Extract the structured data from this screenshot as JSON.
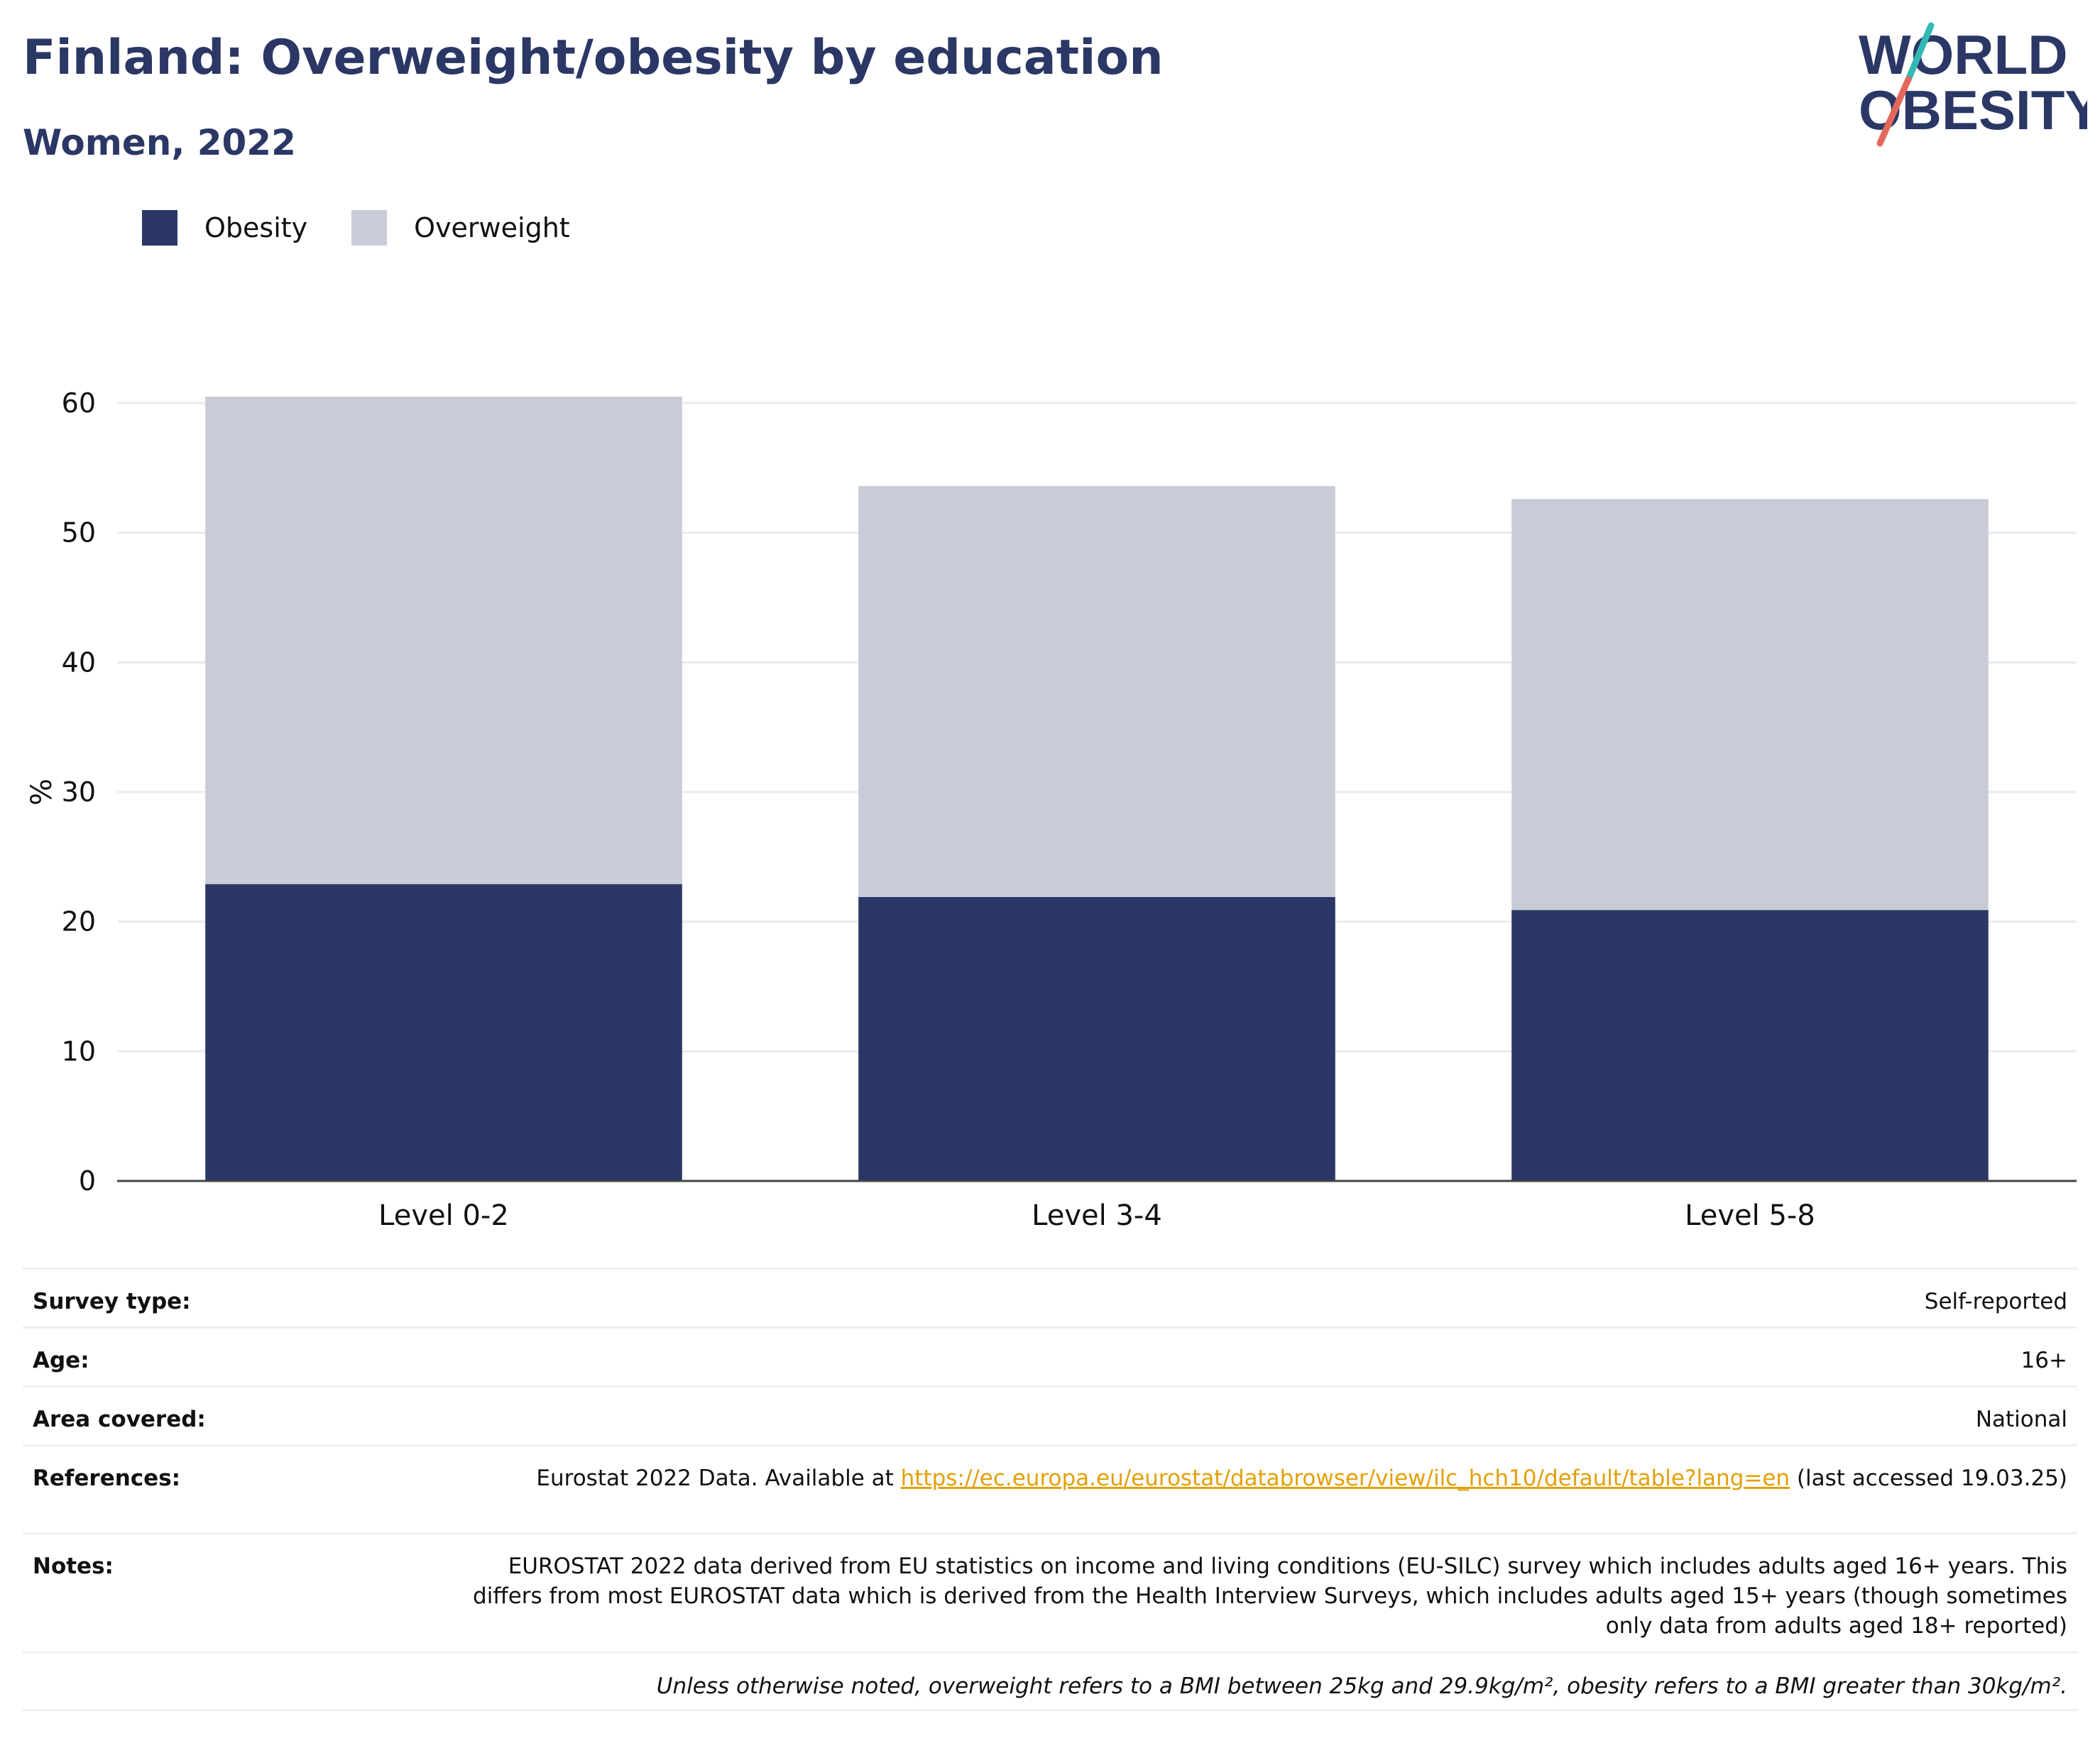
{
  "header": {
    "title": "Finland: Overweight/obesity by education",
    "subtitle": "Women, 2022"
  },
  "logo": {
    "line1": "WORLD",
    "line2": "OBESITY",
    "colors": {
      "text": "#2b3765",
      "slash_top": "#33b9b3",
      "slash_bottom": "#e2685a"
    }
  },
  "legend": [
    {
      "label": "Obesity",
      "color": "#2b3765"
    },
    {
      "label": "Overweight",
      "color": "#c9ccd7"
    }
  ],
  "chart_data": {
    "type": "bar",
    "stacked": true,
    "categories": [
      "Level 0-2",
      "Level 3-4",
      "Level 5-8"
    ],
    "series": [
      {
        "name": "Obesity",
        "color": "#2b3765",
        "values": [
          22.9,
          21.9,
          20.9
        ]
      },
      {
        "name": "Overweight",
        "color": "#c9ccd7",
        "values": [
          37.6,
          31.7,
          31.7
        ]
      }
    ],
    "ylabel": "%",
    "ylim": [
      0,
      60
    ],
    "yticks": [
      0,
      10,
      20,
      30,
      40,
      50,
      60
    ],
    "grid": true,
    "legend_position": "top-left"
  },
  "meta": {
    "survey_type": {
      "label": "Survey type:",
      "value": "Self-reported"
    },
    "age": {
      "label": "Age:",
      "value": "16+"
    },
    "area": {
      "label": "Area covered:",
      "value": "National"
    },
    "references": {
      "label": "References:",
      "prefix": "Eurostat 2022 Data. Available at ",
      "link": "https://ec.europa.eu/eurostat/databrowser/view/ilc_hch10/default/table?lang=en",
      "suffix": " (last accessed 19.03.25)"
    },
    "notes": {
      "label": "Notes:",
      "value": "EUROSTAT 2022 data derived from EU statistics on income and living conditions (EU-SILC) survey which includes adults aged 16+ years. This differs from most EUROSTAT data which is derived from the Health Interview Surveys, which includes adults aged 15+ years (though sometimes only data from adults aged 18+ reported)"
    },
    "footnote": "Unless otherwise noted, overweight refers to a BMI between 25kg and 29.9kg/m², obesity refers to a BMI greater than 30kg/m²."
  }
}
